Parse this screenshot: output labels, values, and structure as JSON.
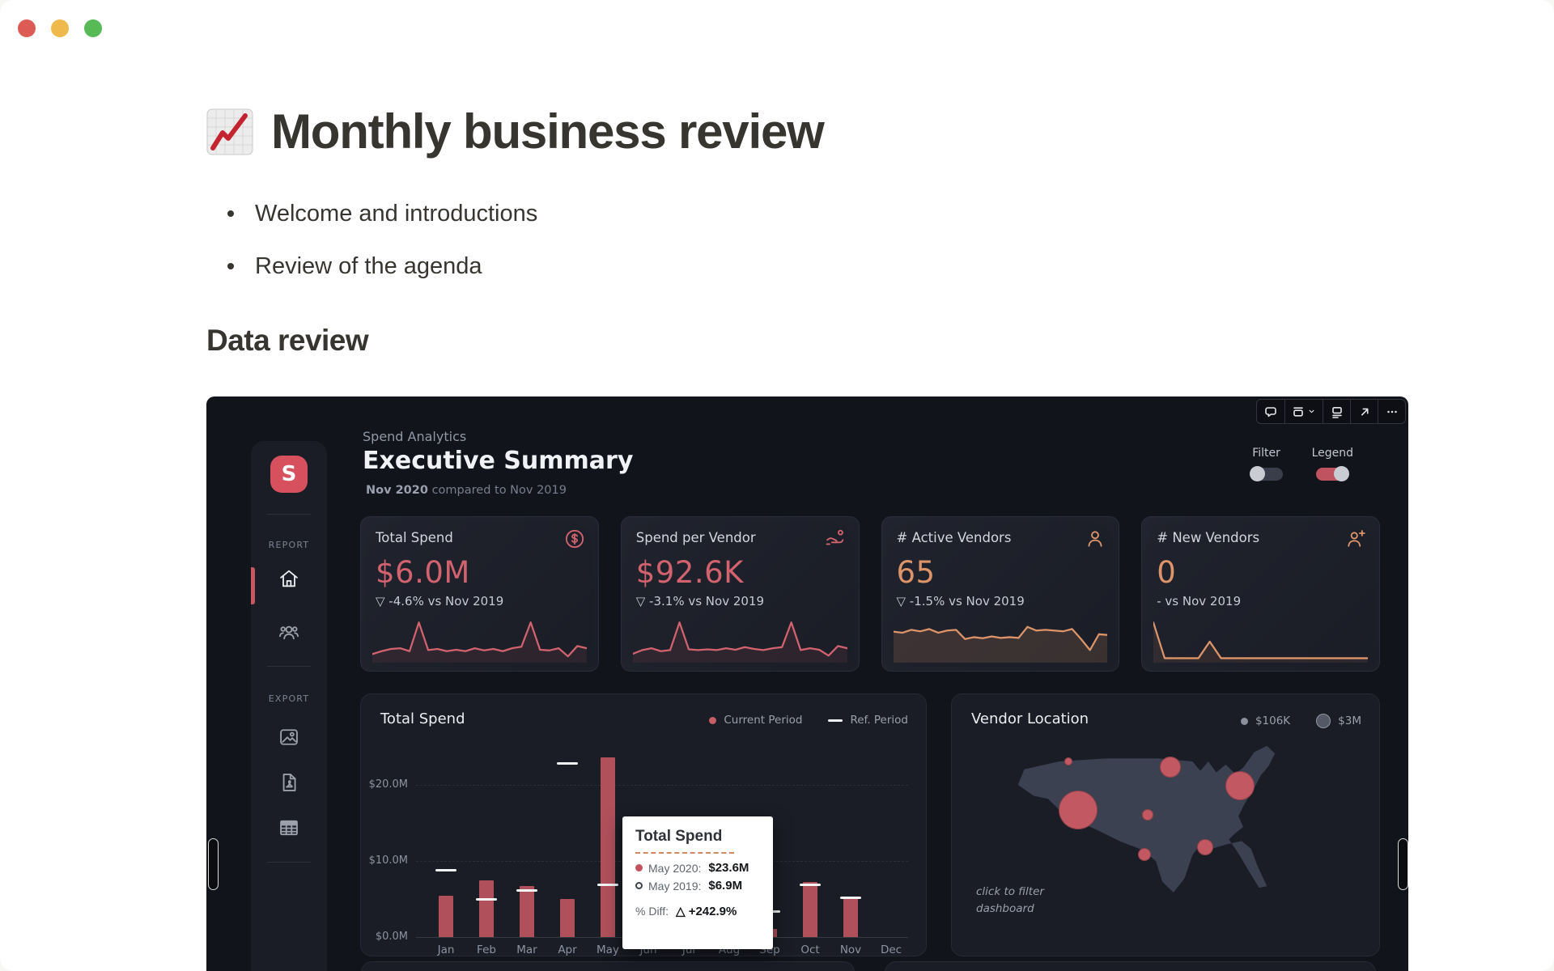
{
  "window": {
    "controls": [
      {
        "name": "close",
        "color": "#dd5b55"
      },
      {
        "name": "minimize",
        "color": "#f0b94b"
      },
      {
        "name": "zoom",
        "color": "#57ba57"
      }
    ]
  },
  "doc": {
    "title": "Monthly business review",
    "bullets": [
      "Welcome and introductions",
      "Review of the agenda"
    ],
    "section_heading": "Data review"
  },
  "embed_toolbar": [
    {
      "icon": "comment-icon"
    },
    {
      "icon": "caption-icon",
      "chevron": true
    },
    {
      "icon": "caption-below-icon"
    },
    {
      "icon": "open-original-icon"
    },
    {
      "icon": "more-icon"
    }
  ],
  "dashboard": {
    "logo_letter": "S",
    "sidebar": [
      {
        "label": "REPORT",
        "items": [
          {
            "icon": "home-icon",
            "active": true
          },
          {
            "icon": "vendors-icon",
            "active": false
          }
        ]
      },
      {
        "label": "EXPORT",
        "items": [
          {
            "icon": "image-export-icon",
            "active": false
          },
          {
            "icon": "pdf-export-icon",
            "active": false
          },
          {
            "icon": "table-export-icon",
            "active": false
          }
        ]
      }
    ],
    "header": {
      "kicker": "Spend Analytics",
      "title": "Executive Summary",
      "period_bold": "Nov 2020",
      "period_rest": " compared to Nov 2019"
    },
    "toggles": [
      {
        "label": "Filter",
        "on": false
      },
      {
        "label": "Legend",
        "on": true
      }
    ],
    "accents": {
      "red": "#d2636e",
      "orange": "#dd9468",
      "toggle_on": "#bf5460",
      "bar": "#b0505b"
    }
  },
  "chart_data": [
    {
      "id": "kpi-total-spend",
      "type": "line",
      "title": "Total Spend",
      "icon": "dollar-circle-icon",
      "value": "$6.0M",
      "delta_marker": "▽",
      "delta": "-4.6% vs Nov 2019",
      "accent": "#d2636e",
      "fill_alpha": 0.1,
      "points": [
        0.14,
        0.22,
        0.28,
        0.3,
        0.22,
        1.0,
        0.25,
        0.28,
        0.22,
        0.26,
        0.22,
        0.3,
        0.24,
        0.28,
        0.22,
        0.3,
        0.34,
        1.0,
        0.26,
        0.24,
        0.3,
        0.08,
        0.36,
        0.3
      ]
    },
    {
      "id": "kpi-spend-per-vendor",
      "type": "line",
      "title": "Spend per Vendor",
      "icon": "vendor-payment-icon",
      "value": "$92.6K",
      "delta_marker": "▽",
      "delta": "-3.1% vs Nov 2019",
      "accent": "#d2636e",
      "fill_alpha": 0.1,
      "points": [
        0.15,
        0.25,
        0.3,
        0.22,
        0.25,
        1.0,
        0.27,
        0.25,
        0.27,
        0.25,
        0.3,
        0.26,
        0.33,
        0.28,
        0.25,
        0.3,
        0.33,
        1.0,
        0.25,
        0.3,
        0.26,
        0.1,
        0.36,
        0.3
      ]
    },
    {
      "id": "kpi-active-vendors",
      "type": "area",
      "title": "# Active Vendors",
      "icon": "person-icon",
      "value": "65",
      "delta_marker": "▽",
      "delta": "-1.5% vs Nov 2019",
      "accent": "#dd9468",
      "fill_alpha": 0.16,
      "points": [
        0.75,
        0.72,
        0.8,
        0.76,
        0.82,
        0.72,
        0.78,
        0.8,
        0.55,
        0.6,
        0.57,
        0.62,
        0.58,
        0.6,
        0.58,
        0.88,
        0.78,
        0.8,
        0.78,
        0.76,
        0.82,
        0.55,
        0.25,
        0.68,
        0.66
      ]
    },
    {
      "id": "kpi-new-vendors",
      "type": "line",
      "title": "# New Vendors",
      "icon": "person-add-icon",
      "value": "0",
      "delta_marker": "-",
      "delta": "vs Nov 2019",
      "accent": "#dd9468",
      "fill_alpha": 0.1,
      "points": [
        1.0,
        0.03,
        0.03,
        0.03,
        0.03,
        0.48,
        0.03,
        0.03,
        0.03,
        0.03,
        0.03,
        0.03,
        0.03,
        0.03,
        0.03,
        0.03,
        0.03,
        0.03,
        0.03,
        0.03
      ]
    },
    {
      "id": "monthly-total-spend",
      "type": "bar",
      "title": "Total Spend",
      "categories": [
        "Jan",
        "Feb",
        "Mar",
        "Apr",
        "May",
        "Jun",
        "Jul",
        "Aug",
        "Sep",
        "Oct",
        "Nov",
        "Dec"
      ],
      "series": [
        {
          "name": "Current Period",
          "marker": "dot",
          "values": [
            5.4,
            7.4,
            6.7,
            5.0,
            23.6,
            5.2,
            5.8,
            4.6,
            1.1,
            7.2,
            5.1,
            0
          ]
        },
        {
          "name": "Ref. Period",
          "marker": "dash",
          "values": [
            8.8,
            5.0,
            6.1,
            22.8,
            6.9,
            6.2,
            5.4,
            5.0,
            3.3,
            6.9,
            5.2,
            null
          ]
        }
      ],
      "ytick_labels": [
        "$0.0M",
        "$10.0M",
        "$20.0M"
      ],
      "ytick_values": [
        0,
        10,
        20
      ],
      "ylim": [
        0,
        24
      ],
      "tooltip": {
        "title": "Total Spend",
        "rows": [
          {
            "marker": "dot",
            "label": "May 2020:",
            "value": "$23.6M"
          },
          {
            "marker": "circle",
            "label": "May 2019:",
            "value": "$6.9M"
          }
        ],
        "diff_label": "% Diff:",
        "diff_marker": "△",
        "diff_value": "+242.9%"
      }
    },
    {
      "id": "vendor-location",
      "type": "bubble-map",
      "title": "Vendor Location",
      "legend": [
        {
          "label": "$106K",
          "size": "small"
        },
        {
          "label": "$3M",
          "size": "large"
        }
      ],
      "note": "click to filter dashboard",
      "bubbles": [
        {
          "x": 20,
          "y": 12,
          "r": 5
        },
        {
          "x": 52,
          "y": 15,
          "r": 13
        },
        {
          "x": 74,
          "y": 26,
          "r": 18
        },
        {
          "x": 23,
          "y": 40,
          "r": 24
        },
        {
          "x": 45,
          "y": 43,
          "r": 7
        },
        {
          "x": 63,
          "y": 62,
          "r": 10
        },
        {
          "x": 44,
          "y": 66,
          "r": 8
        }
      ]
    }
  ]
}
